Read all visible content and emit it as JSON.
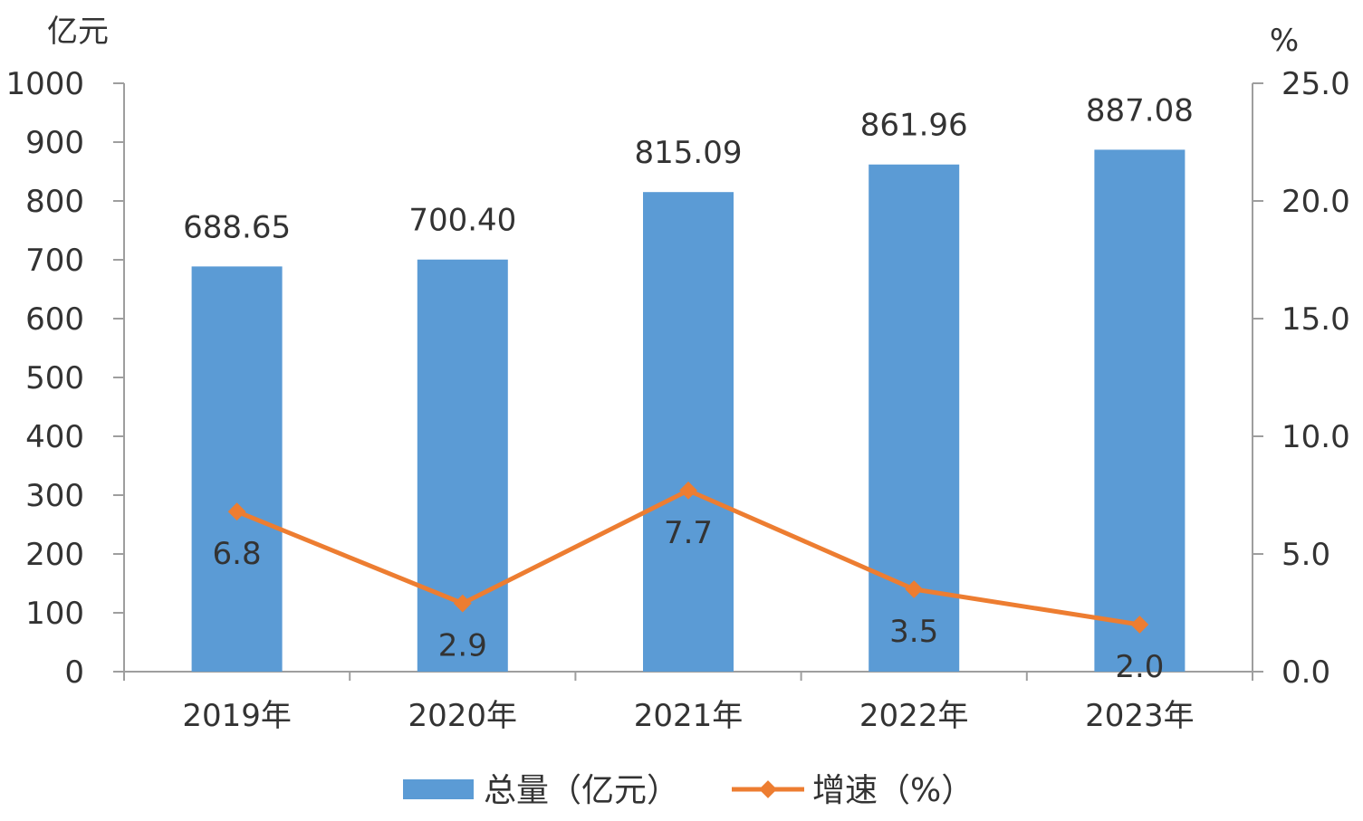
{
  "chart_data": {
    "type": "bar",
    "categories": [
      "2019年",
      "2020年",
      "2021年",
      "2022年",
      "2023年"
    ],
    "series": [
      {
        "name": "总量（亿元）",
        "type": "bar",
        "axis": "left",
        "values": [
          688.65,
          700.4,
          815.09,
          861.96,
          887.08
        ],
        "labels": [
          "688.65",
          "700.40",
          "815.09",
          "861.96",
          "887.08"
        ],
        "color": "#5b9bd5"
      },
      {
        "name": "增速（%）",
        "type": "line",
        "axis": "right",
        "values": [
          6.8,
          2.9,
          7.7,
          3.5,
          2.0
        ],
        "labels": [
          "6.8",
          "2.9",
          "7.7",
          "3.5",
          "2.0"
        ],
        "color": "#ed7d31"
      }
    ],
    "y_left": {
      "unit": "亿元",
      "min": 0,
      "max": 1000,
      "ticks": [
        "0",
        "100",
        "200",
        "300",
        "400",
        "500",
        "600",
        "700",
        "800",
        "900",
        "1000"
      ]
    },
    "y_right": {
      "unit": "%",
      "min": 0,
      "max": 25,
      "ticks": [
        "0.0",
        "5.0",
        "10.0",
        "15.0",
        "20.0",
        "25.0"
      ]
    },
    "grid": false,
    "legend_position": "bottom"
  }
}
